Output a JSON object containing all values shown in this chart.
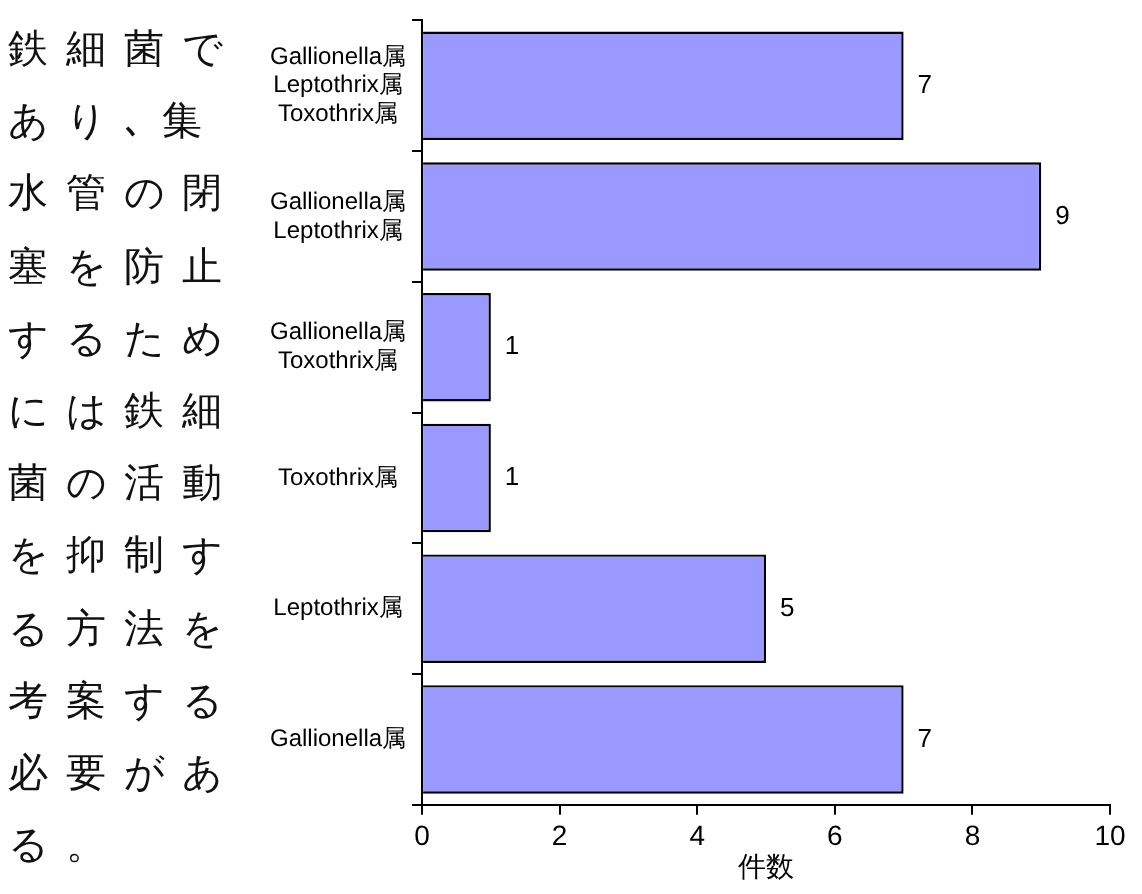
{
  "chart_data": {
    "type": "bar",
    "orientation": "horizontal",
    "xlabel": "件数",
    "categories": [
      "Gallionella属\nLeptothrix属\nToxothrix属",
      "Gallionella属\nLeptothrix属",
      "Gallionella属\nToxothrix属",
      "Toxothrix属",
      "Leptothrix属",
      "Gallionella属"
    ],
    "values": [
      7,
      9,
      1,
      1,
      5,
      7
    ],
    "color": "#9999ff",
    "xlim": [
      0,
      10
    ],
    "xticks": [
      0,
      2,
      4,
      6,
      8,
      10
    ],
    "data_labels": true,
    "grid": false,
    "legend": false,
    "annotations": [
      "鉄細菌であり､集水管の閉塞を防止するためには鉄細菌の活動を抑制する方法を考案する必要がある。"
    ]
  }
}
